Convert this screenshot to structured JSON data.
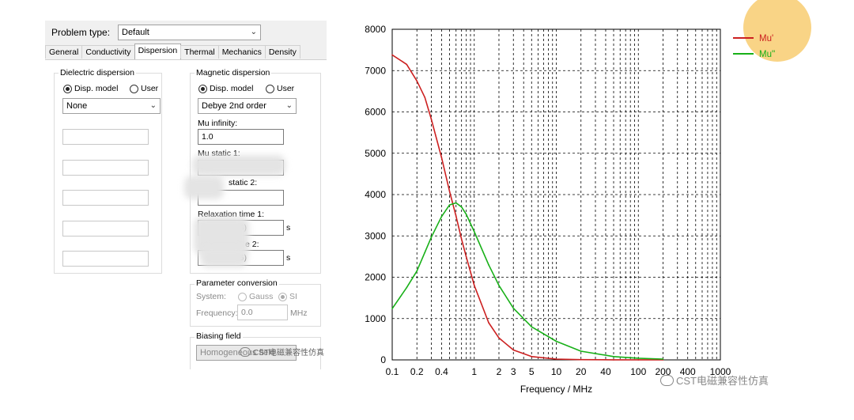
{
  "dialog": {
    "problem_type_label": "Problem type:",
    "problem_type_value": "Default",
    "tabs": [
      "General",
      "Conductivity",
      "Dispersion",
      "Thermal",
      "Mechanics",
      "Density"
    ],
    "active_tab": "Dispersion",
    "dielectric": {
      "title": "Dielectric dispersion",
      "radio_disp_model": "Disp. model",
      "radio_user": "User",
      "model_value": "None"
    },
    "magnetic": {
      "title": "Magnetic dispersion",
      "radio_disp_model": "Disp. model",
      "radio_user": "User",
      "model_value": "Debye 2nd order",
      "mu_infinity_label": "Mu infinity:",
      "mu_infinity_value": "1.0",
      "mu_static1_label": "Mu static 1:",
      "mu_static2_label_fragment": "static 2:",
      "relax1_label": "Relaxation time 1:",
      "relax1_value_fragment": "6)",
      "relax1_unit": "s",
      "relax2_label_fragment": "e 2:",
      "relax2_value_fragment": "6)",
      "relax2_unit": "s"
    },
    "conversion": {
      "title": "Parameter conversion",
      "system_label": "System:",
      "gauss_label": "Gauss",
      "si_label": "SI",
      "frequency_label": "Frequency:",
      "frequency_value": "0.0",
      "frequency_unit": "MHz"
    },
    "biasing": {
      "title": "Biasing field",
      "value": "Homogeneous field"
    },
    "watermark_small": "CST电磁兼容性仿真"
  },
  "watermark": "CST电磁兼容性仿真",
  "colors": {
    "mu_real": "#cc2020",
    "mu_imag": "#18b018",
    "corner_decor": "#f9d486"
  },
  "chart_data": {
    "type": "line",
    "title": "",
    "xlabel": "Frequency / MHz",
    "ylabel": "",
    "xscale": "log",
    "xlim": [
      0.1,
      1000
    ],
    "ylim": [
      0,
      8000
    ],
    "xticks": [
      0.1,
      0.2,
      0.4,
      1,
      2,
      3,
      5,
      10,
      20,
      40,
      100,
      200,
      400,
      1000
    ],
    "xticklabels": [
      "0.1",
      "0.2",
      "0.4",
      "1",
      "2",
      "3",
      "5",
      "10",
      "20",
      "40",
      "100",
      "200",
      "400",
      "1000"
    ],
    "yticks": [
      0,
      1000,
      2000,
      3000,
      4000,
      5000,
      6000,
      7000,
      8000
    ],
    "grid": true,
    "legend": "top-right",
    "series": [
      {
        "name": "Mu'",
        "x": [
          0.1,
          0.15,
          0.2,
          0.25,
          0.3,
          0.4,
          0.5,
          0.6,
          0.7,
          0.8,
          1,
          1.5,
          2,
          3,
          5,
          10,
          20,
          50,
          100,
          200
        ],
        "values": [
          7380,
          7150,
          6750,
          6350,
          5820,
          4890,
          4080,
          3480,
          2920,
          2490,
          1800,
          900,
          530,
          240,
          80,
          20,
          5,
          1,
          1,
          1
        ]
      },
      {
        "name": "Mu''",
        "x": [
          0.1,
          0.15,
          0.2,
          0.25,
          0.3,
          0.4,
          0.5,
          0.6,
          0.7,
          0.8,
          1,
          1.5,
          2,
          3,
          5,
          10,
          20,
          50,
          100,
          200
        ],
        "values": [
          1240,
          1750,
          2150,
          2600,
          2970,
          3470,
          3750,
          3800,
          3700,
          3520,
          3100,
          2300,
          1800,
          1250,
          800,
          450,
          210,
          80,
          40,
          20
        ]
      }
    ]
  }
}
